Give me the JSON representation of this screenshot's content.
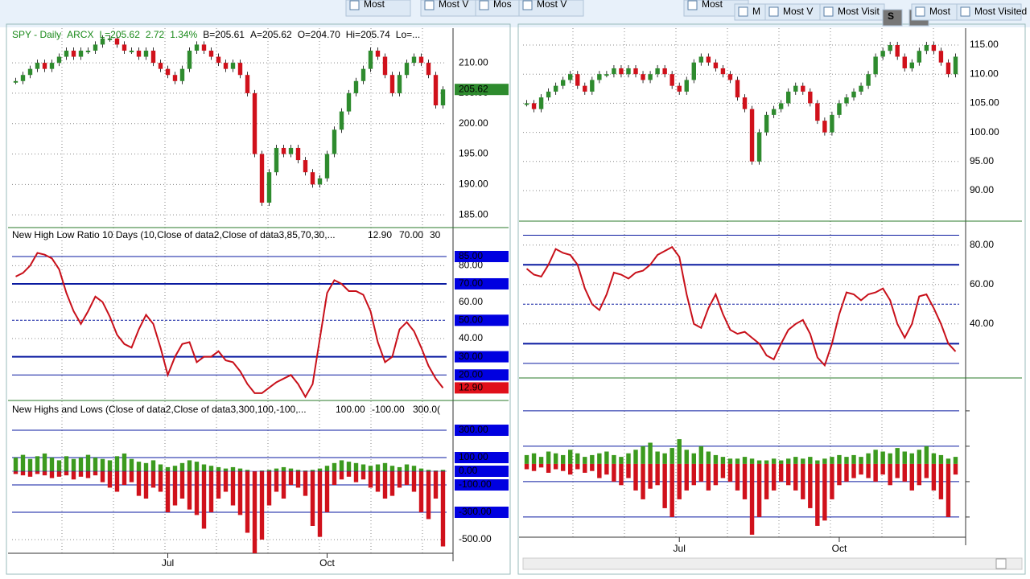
{
  "tabs": [
    "Most",
    "Most V",
    "Mos",
    "Most V",
    "Most",
    "M",
    "Most V",
    "Most Visit",
    "S",
    "I",
    "Most",
    "Most Visited"
  ],
  "left": {
    "price": {
      "type": "candle",
      "title_parts": [
        "SPY - Daily",
        "ARCX",
        "L=205.62",
        "2.72",
        "1.34%",
        "B=205.61",
        "A=205.62",
        "O=204.70",
        "Hi=205.74",
        "Lo=..."
      ],
      "values": [
        207,
        208,
        209,
        210,
        209,
        210,
        211,
        212,
        211,
        212,
        212,
        213,
        214,
        214,
        213,
        212,
        212,
        211,
        212,
        210,
        209,
        208,
        207,
        209,
        212,
        213,
        212,
        211,
        210,
        209,
        210,
        208,
        205,
        195,
        187,
        192,
        196,
        195,
        196,
        194,
        192,
        190,
        191,
        195,
        199,
        202,
        205,
        207,
        209,
        212,
        211,
        208,
        205,
        208,
        210,
        211,
        210,
        208,
        203,
        205.62
      ],
      "ylim": [
        182.9,
        215.7
      ],
      "yticks": [
        {
          "value": 185,
          "label": "185.00"
        },
        {
          "value": 190,
          "label": "190.00"
        },
        {
          "value": 195,
          "label": "195.00"
        },
        {
          "value": 200,
          "label": "200.00"
        },
        {
          "value": 205,
          "label": "205.00"
        },
        {
          "value": 210,
          "label": "210.00"
        }
      ],
      "last": {
        "value": 205.62,
        "label": "205.62"
      },
      "up_color": "#2e8b2e",
      "down_color": "#d0111b"
    },
    "ratio": {
      "type": "line",
      "title": "New High Low Ratio 10 Days (10,Close of data2,Close of data3,85,70,30,...",
      "params": [
        "12.90",
        "70.00",
        "30"
      ],
      "values": [
        74,
        76,
        80,
        87,
        86,
        84,
        78,
        65,
        55,
        48,
        55,
        63,
        60,
        52,
        42,
        37,
        35,
        45,
        53,
        48,
        35,
        20,
        30,
        37,
        38,
        27,
        30,
        30,
        33,
        28,
        27,
        22,
        15,
        10,
        10,
        13,
        16,
        18,
        20,
        15,
        8,
        15,
        40,
        65,
        72,
        70,
        66,
        66,
        64,
        55,
        38,
        27,
        30,
        45,
        49,
        44,
        35,
        25,
        18,
        12.9
      ],
      "ylim": [
        6,
        100
      ],
      "yticks": [
        {
          "value": 80,
          "label": "80.00"
        },
        {
          "value": 60,
          "label": "60.00"
        },
        {
          "value": 40,
          "label": "40.00"
        }
      ],
      "levels": [
        {
          "value": 85,
          "label": "85.00"
        },
        {
          "value": 70,
          "label": "70.00"
        },
        {
          "value": 50,
          "label": "50.00"
        },
        {
          "value": 30,
          "label": "30.00"
        },
        {
          "value": 20,
          "label": "20.00"
        }
      ],
      "last": {
        "value": 12.9,
        "label": "12.90"
      },
      "color": "#c8101a"
    },
    "hilo": {
      "type": "bar",
      "title": "New Highs and Lows (Close of data2,Close of data3,300,100,-100,...",
      "params": [
        "100.00",
        "-100.00",
        "300.0("
      ],
      "series": [
        {
          "color": "#3c9a1e",
          "values": [
            100,
            120,
            90,
            110,
            130,
            100,
            80,
            110,
            90,
            100,
            120,
            100,
            90,
            80,
            110,
            130,
            90,
            70,
            60,
            80,
            50,
            30,
            40,
            60,
            80,
            70,
            50,
            40,
            30,
            20,
            30,
            20,
            10,
            0,
            5,
            10,
            20,
            30,
            20,
            10,
            5,
            10,
            20,
            40,
            60,
            80,
            70,
            60,
            50,
            40,
            50,
            60,
            40,
            30,
            50,
            40,
            20,
            10,
            5,
            10
          ]
        },
        {
          "color": "#d0111b",
          "values": [
            -20,
            -30,
            -40,
            -20,
            -30,
            -50,
            -40,
            -30,
            -60,
            -40,
            -50,
            -30,
            -80,
            -120,
            -150,
            -100,
            -80,
            -180,
            -200,
            -120,
            -150,
            -300,
            -250,
            -200,
            -280,
            -320,
            -420,
            -300,
            -200,
            -150,
            -250,
            -320,
            -450,
            -600,
            -500,
            -250,
            -150,
            -200,
            -100,
            -120,
            -180,
            -400,
            -480,
            -300,
            -100,
            -60,
            -40,
            -80,
            -60,
            -120,
            -150,
            -200,
            -180,
            -120,
            -100,
            -150,
            -300,
            -350,
            -200,
            -550
          ]
        }
      ],
      "ylim": [
        -600,
        506
      ],
      "levels": [
        {
          "value": 300,
          "label": "300.00"
        },
        {
          "value": 100,
          "label": "100.00"
        },
        {
          "value": -100,
          "label": "-100.00"
        },
        {
          "value": -300,
          "label": "-300.00"
        }
      ],
      "zero": {
        "value": 0,
        "label": "0.00"
      },
      "yticks": [
        {
          "value": -500,
          "label": "-500.00"
        }
      ]
    },
    "xticks": [
      {
        "value": 21,
        "label": "Jul"
      },
      {
        "value": 43,
        "label": "Oct"
      }
    ]
  },
  "right": {
    "price": {
      "type": "candle",
      "values": [
        105,
        104,
        106,
        107,
        108,
        109,
        110,
        108,
        107,
        109,
        110,
        110,
        111,
        110,
        111,
        110,
        109,
        110,
        111,
        110,
        108,
        107,
        109,
        112,
        113,
        112,
        111,
        110,
        109,
        106,
        104,
        95,
        100,
        103,
        104,
        105,
        107,
        108,
        107,
        105,
        102,
        100,
        103,
        105,
        106,
        107,
        108,
        110,
        113,
        114,
        115,
        113,
        111,
        112,
        114,
        115,
        114,
        112,
        110,
        113
      ],
      "ylim": [
        84.75,
        117.9
      ],
      "yticks": [
        {
          "value": 90,
          "label": "90.00"
        },
        {
          "value": 95,
          "label": "95.00"
        },
        {
          "value": 100,
          "label": "100.00"
        },
        {
          "value": 105,
          "label": "105.00"
        },
        {
          "value": 110,
          "label": "110.00"
        },
        {
          "value": 115,
          "label": "115.00"
        }
      ],
      "up_color": "#2e8b2e",
      "down_color": "#d0111b"
    },
    "ratio": {
      "type": "line",
      "values": [
        68,
        65,
        64,
        70,
        78,
        76,
        75,
        70,
        58,
        50,
        47,
        55,
        66,
        65,
        63,
        66,
        67,
        70,
        75,
        77,
        79,
        74,
        55,
        40,
        38,
        48,
        55,
        45,
        37,
        35,
        36,
        33,
        30,
        24,
        22,
        30,
        37,
        40,
        42,
        35,
        23,
        19,
        30,
        45,
        56,
        55,
        52,
        55,
        56,
        58,
        52,
        40,
        33,
        40,
        54,
        55,
        48,
        40,
        30,
        26
      ],
      "ylim": [
        12.6,
        86
      ],
      "yticks": [
        {
          "value": 80,
          "label": "80.00"
        },
        {
          "value": 60,
          "label": "60.00"
        },
        {
          "value": 40,
          "label": "40.00"
        }
      ],
      "levels": [
        85,
        70,
        50,
        30,
        20
      ],
      "color": "#c8101a"
    },
    "hilo": {
      "type": "bar",
      "series": [
        {
          "color": "#3c9a1e",
          "values": [
            50,
            60,
            40,
            70,
            60,
            50,
            80,
            60,
            40,
            50,
            60,
            70,
            50,
            40,
            60,
            80,
            100,
            120,
            70,
            60,
            90,
            140,
            80,
            60,
            100,
            70,
            50,
            40,
            30,
            30,
            40,
            30,
            20,
            20,
            30,
            20,
            30,
            40,
            30,
            40,
            20,
            30,
            40,
            50,
            40,
            50,
            40,
            60,
            80,
            70,
            60,
            90,
            70,
            60,
            80,
            100,
            60,
            50,
            30,
            40
          ]
        },
        {
          "color": "#d0111b",
          "values": [
            -30,
            -40,
            -20,
            -50,
            -30,
            -40,
            -60,
            -30,
            -50,
            -40,
            -80,
            -60,
            -100,
            -120,
            -80,
            -150,
            -200,
            -140,
            -120,
            -250,
            -300,
            -200,
            -150,
            -120,
            -100,
            -150,
            -120,
            -80,
            -100,
            -150,
            -200,
            -400,
            -300,
            -200,
            -150,
            -100,
            -120,
            -150,
            -200,
            -250,
            -350,
            -320,
            -200,
            -120,
            -100,
            -80,
            -60,
            -80,
            -100,
            -60,
            -120,
            -80,
            -100,
            -150,
            -120,
            -80,
            -150,
            -200,
            -300,
            -60
          ]
        }
      ],
      "ylim": [
        -414,
        395
      ],
      "levels": [
        300,
        100,
        -100,
        -300
      ]
    },
    "xticks": [
      {
        "value": 21,
        "label": "Jul"
      },
      {
        "value": 43,
        "label": "Oct"
      }
    ]
  }
}
